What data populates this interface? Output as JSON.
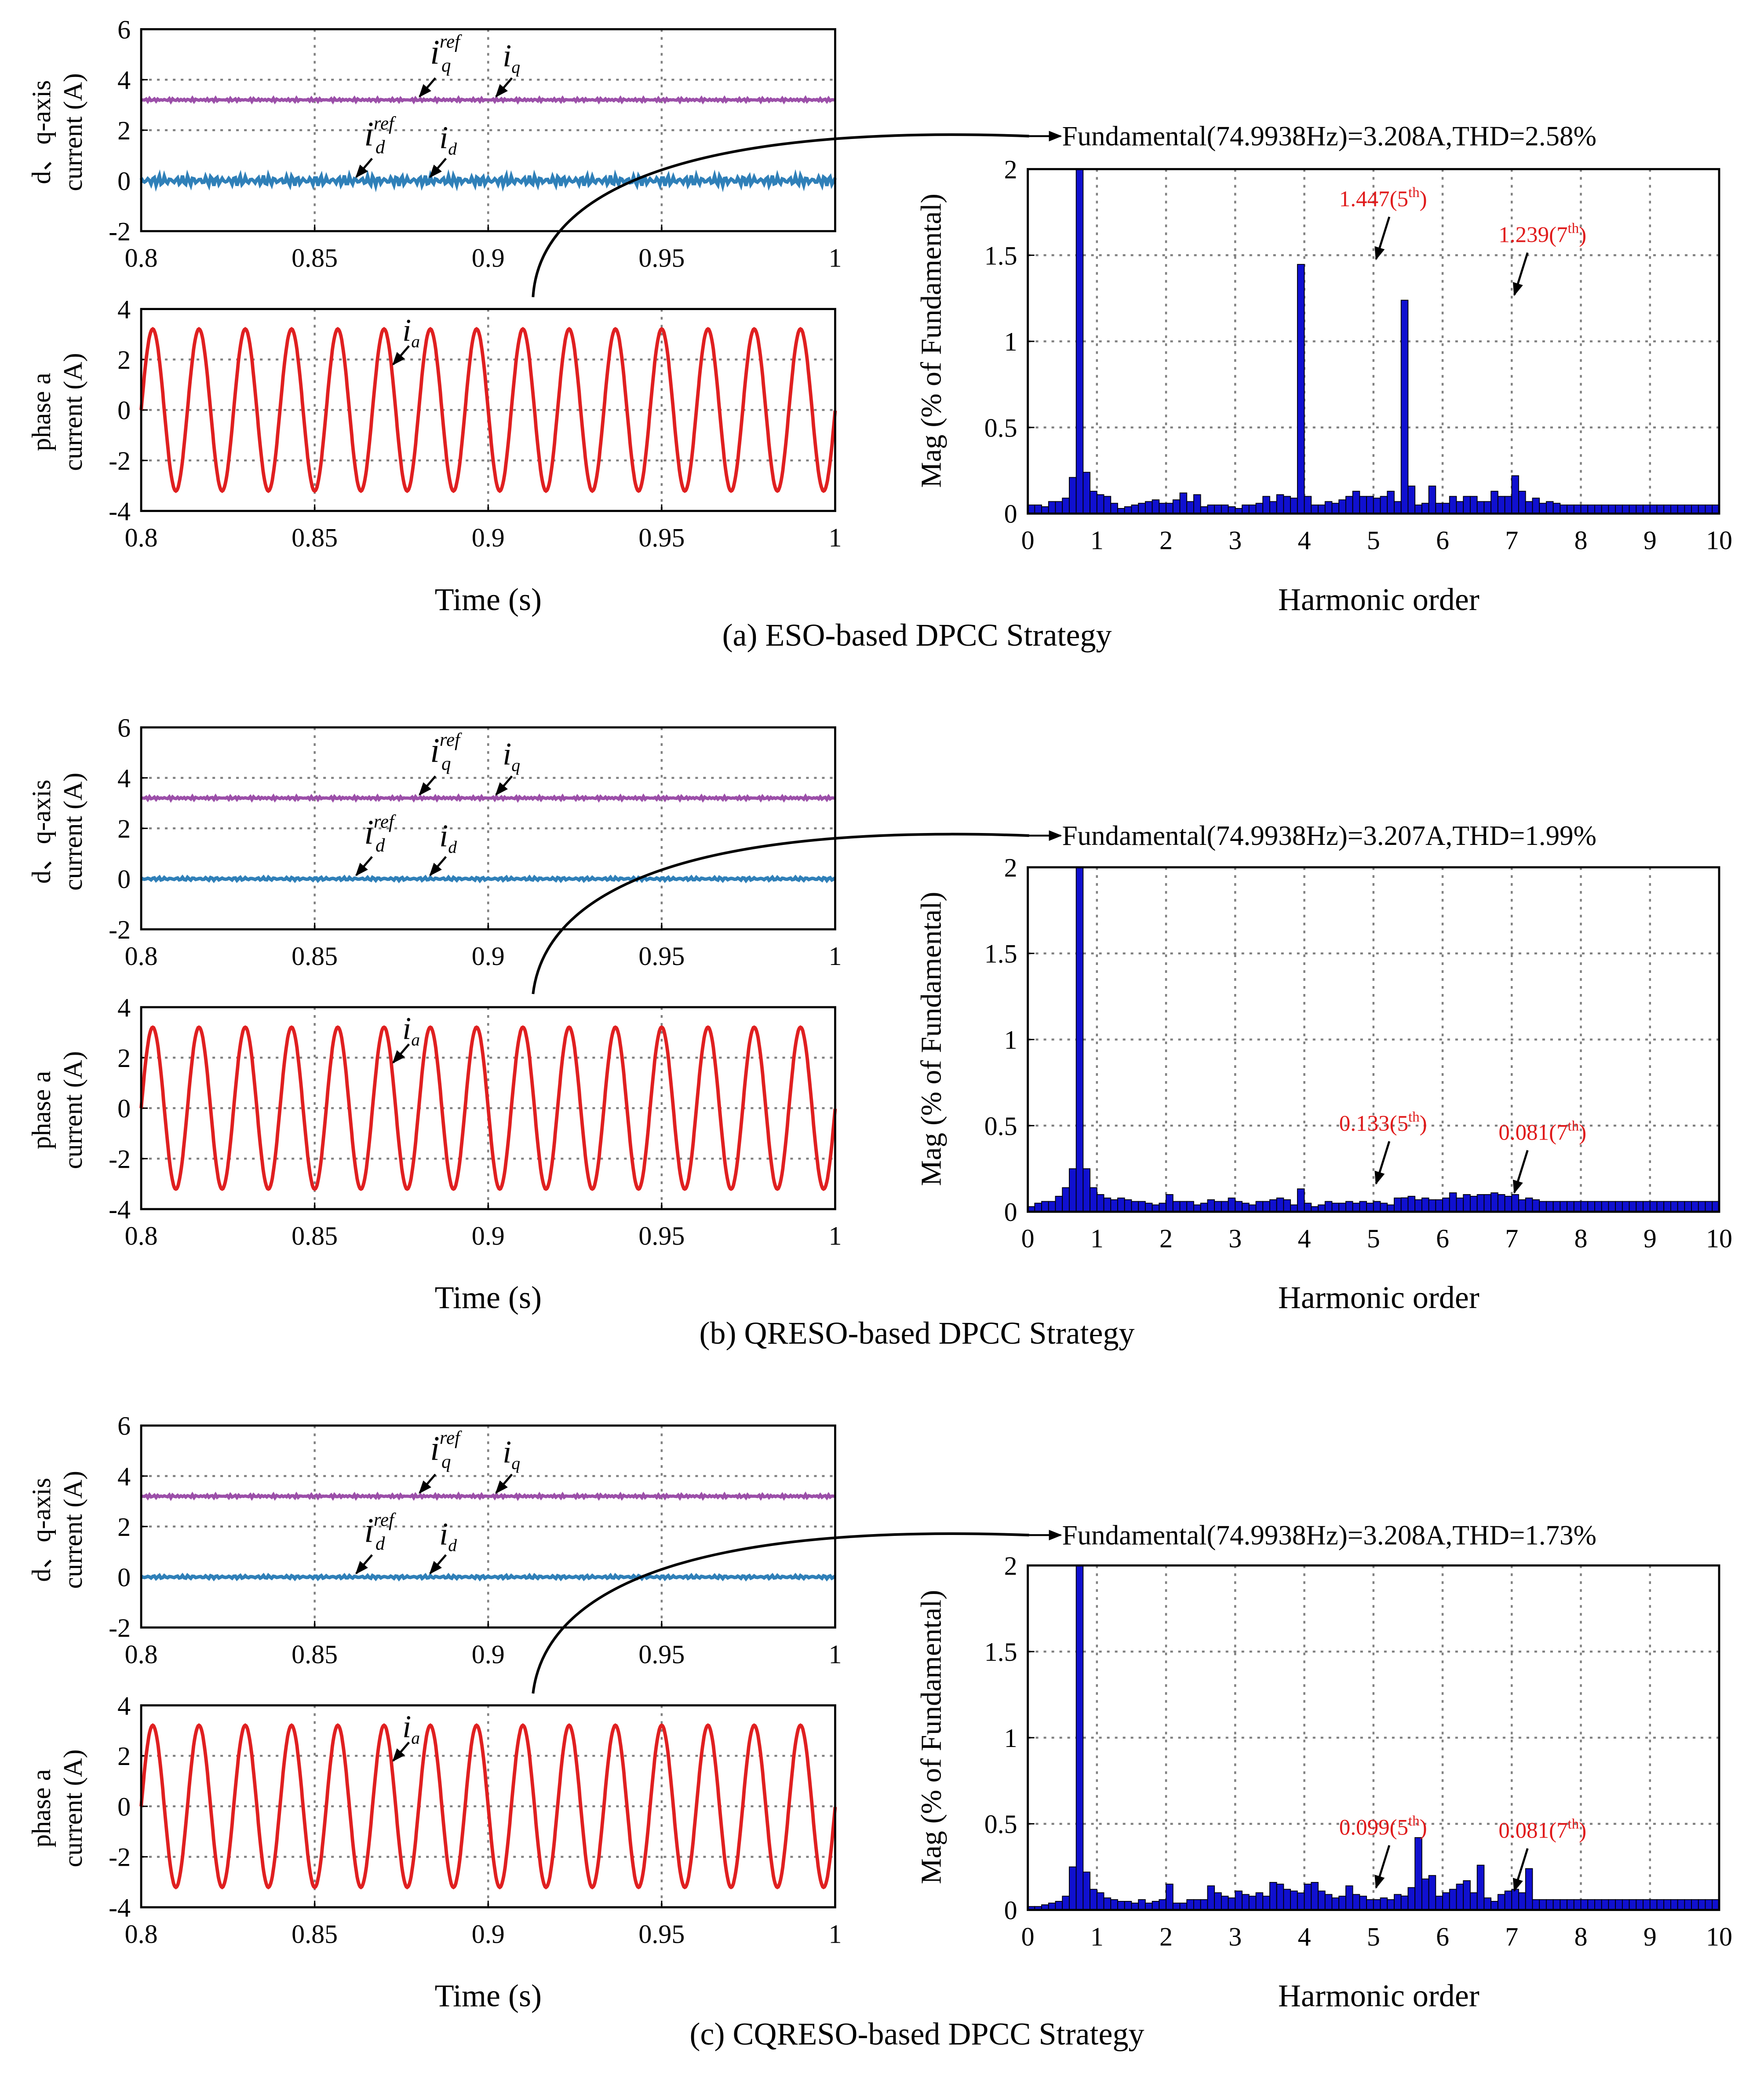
{
  "colors": {
    "iq": "#9b4fa8",
    "id": "#2f7fb8",
    "ia": "#e02020",
    "bar": "#1010d0",
    "bar_edge": "#000000",
    "annotation": "#e01a1a",
    "grid": "#808080"
  },
  "panels": [
    {
      "caption": "(a) ESO-based DPCC Strategy",
      "fundamental_text": "Fundamental(74.9938Hz)=3.208A,THD=2.58%",
      "dq_ylabel": [
        "d、q-axis",
        "current (A)"
      ],
      "phase_ylabel": [
        "phase a",
        "current (A)"
      ],
      "time_xlabel": "Time (s)",
      "harm_ylabel": "Mag (% of Fundamental)",
      "harm_xlabel": "Harmonic order",
      "annotations": [
        {
          "value": "1.447",
          "order": "5",
          "sup": "th",
          "label": "1.447(5th)",
          "x": 5,
          "y": 1.447
        },
        {
          "value": "1.239",
          "order": "7",
          "sup": "th",
          "label": "1.239(7th)",
          "x": 7,
          "y": 1.239
        }
      ],
      "signal_labels": {
        "iq_ref": "i",
        "iq_ref_sup": "ref",
        "iq_ref_sub": "q",
        "iq": "i",
        "iq_sub": "q",
        "id_ref": "i",
        "id_ref_sup": "ref",
        "id_ref_sub": "d",
        "id": "i",
        "id_sub": "d",
        "ia": "i",
        "ia_sub": "a"
      }
    },
    {
      "caption": "(b) QRESO-based DPCC Strategy",
      "fundamental_text": "Fundamental(74.9938Hz)=3.207A,THD=1.99%",
      "dq_ylabel": [
        "d、q-axis",
        "current (A)"
      ],
      "phase_ylabel": [
        "phase a",
        "current (A)"
      ],
      "time_xlabel": "Time (s)",
      "harm_ylabel": "Mag (% of Fundamental)",
      "harm_xlabel": "Harmonic order",
      "annotations": [
        {
          "value": "0.133",
          "order": "5",
          "sup": "th",
          "label": "0.133(5th)",
          "x": 5,
          "y": 0.133
        },
        {
          "value": "0.081",
          "order": "7",
          "sup": "th",
          "label": "0.081(7th)",
          "x": 7,
          "y": 0.081
        }
      ],
      "signal_labels": {
        "iq_ref": "i",
        "iq_ref_sup": "ref",
        "iq_ref_sub": "q",
        "iq": "i",
        "iq_sub": "q",
        "id_ref": "i",
        "id_ref_sup": "ref",
        "id_ref_sub": "d",
        "id": "i",
        "id_sub": "d",
        "ia": "i",
        "ia_sub": "a"
      }
    },
    {
      "caption": "(c) CQRESO-based DPCC Strategy",
      "fundamental_text": "Fundamental(74.9938Hz)=3.208A,THD=1.73%",
      "dq_ylabel": [
        "d、q-axis",
        "current (A)"
      ],
      "phase_ylabel": [
        "phase a",
        "current (A)"
      ],
      "time_xlabel": "Time (s)",
      "harm_ylabel": "Mag (% of Fundamental)",
      "harm_xlabel": "Harmonic order",
      "annotations": [
        {
          "value": "0.099",
          "order": "5",
          "sup": "th",
          "label": "0.099(5th)",
          "x": 5,
          "y": 0.099
        },
        {
          "value": "0.081",
          "order": "7",
          "sup": "th",
          "label": "0.081(7th)",
          "x": 7,
          "y": 0.081
        }
      ],
      "signal_labels": {
        "iq_ref": "i",
        "iq_ref_sup": "ref",
        "iq_ref_sub": "q",
        "iq": "i",
        "iq_sub": "q",
        "id_ref": "i",
        "id_ref_sup": "ref",
        "id_ref_sub": "d",
        "id": "i",
        "id_sub": "d",
        "ia": "i",
        "ia_sub": "a"
      }
    }
  ],
  "chart_data": [
    {
      "type": "line",
      "panel": "a",
      "xlabel": "",
      "ylabel": "d、q-axis current (A)",
      "xlim": [
        0.8,
        1
      ],
      "ylim": [
        -2,
        6
      ],
      "xticks": [
        0.8,
        0.85,
        0.9,
        0.95,
        1
      ],
      "yticks": [
        -2,
        0,
        2,
        4,
        6
      ],
      "series": [
        {
          "name": "iq",
          "level": 3.2,
          "ripple": 0.04
        },
        {
          "name": "id",
          "level": 0.0,
          "ripple": 0.13
        }
      ],
      "grid": true
    },
    {
      "type": "line",
      "panel": "a",
      "xlabel": "Time (s)",
      "ylabel": "phase a current (A)",
      "xlim": [
        0.8,
        1
      ],
      "ylim": [
        -4,
        4
      ],
      "xticks": [
        0.8,
        0.85,
        0.9,
        0.95,
        1
      ],
      "yticks": [
        -4,
        -2,
        0,
        2,
        4
      ],
      "series": [
        {
          "name": "ia",
          "amplitude": 3.208,
          "frequency_hz": 74.9938
        }
      ],
      "grid": true
    },
    {
      "type": "bar",
      "panel": "a",
      "xlabel": "Harmonic order",
      "ylabel": "Mag (% of Fundamental)",
      "xlim": [
        0,
        10
      ],
      "ylim": [
        0,
        2
      ],
      "xticks": [
        0,
        1,
        2,
        3,
        4,
        5,
        6,
        7,
        8,
        9,
        10
      ],
      "yticks": [
        0,
        0.5,
        1,
        1.5,
        2
      ],
      "bar_width": 0.1,
      "x": [
        0.1,
        0.2,
        0.3,
        0.4,
        0.5,
        0.6,
        0.7,
        0.8,
        0.9,
        1.0,
        1.1,
        1.2,
        1.3,
        1.4,
        1.5,
        1.6,
        1.7,
        1.8,
        1.9,
        2.0,
        2.1,
        2.2,
        2.3,
        2.4,
        2.5,
        2.6,
        2.7,
        2.8,
        2.9,
        3.0,
        3.1,
        3.2,
        3.3,
        3.4,
        3.5,
        3.6,
        3.7,
        3.8,
        3.9,
        4.0,
        4.1,
        4.2,
        4.3,
        4.4,
        4.5,
        4.6,
        4.7,
        4.8,
        4.9,
        5.0,
        5.1,
        5.2,
        5.3,
        5.4,
        5.5,
        5.6,
        5.7,
        5.8,
        5.9,
        6.0,
        6.1,
        6.2,
        6.3,
        6.4,
        6.5,
        6.6,
        6.7,
        6.8,
        6.9,
        7.0,
        7.1,
        7.2,
        7.3,
        7.4,
        7.5,
        7.6,
        7.7,
        7.8,
        7.9,
        8.0,
        8.1,
        8.2,
        8.3,
        8.4,
        8.5,
        8.6,
        8.7,
        8.8,
        8.9,
        9.0,
        9.1,
        9.2,
        9.3,
        9.4,
        9.5,
        9.6,
        9.7,
        9.8,
        9.9,
        10.0
      ],
      "values": [
        0.05,
        0.05,
        0.04,
        0.07,
        0.07,
        0.09,
        0.21,
        2.0,
        0.24,
        0.13,
        0.11,
        0.1,
        0.06,
        0.03,
        0.04,
        0.05,
        0.06,
        0.07,
        0.08,
        0.06,
        0.06,
        0.08,
        0.12,
        0.07,
        0.11,
        0.04,
        0.05,
        0.05,
        0.05,
        0.04,
        0.03,
        0.05,
        0.05,
        0.06,
        0.1,
        0.07,
        0.11,
        0.1,
        0.09,
        1.447,
        0.1,
        0.05,
        0.05,
        0.07,
        0.06,
        0.08,
        0.1,
        0.13,
        0.1,
        0.1,
        0.09,
        0.1,
        0.13,
        0.07,
        1.239,
        0.16,
        0.05,
        0.06,
        0.16,
        0.06,
        0.06,
        0.1,
        0.07,
        0.1,
        0.1,
        0.07,
        0.07,
        0.13,
        0.1,
        0.1,
        0.22,
        0.13,
        0.07,
        0.09,
        0.06,
        0.07,
        0.06,
        0.05,
        0.05,
        0.05,
        0.05,
        0.05,
        0.05,
        0.05,
        0.05,
        0.05,
        0.05,
        0.05,
        0.05,
        0.05,
        0.05,
        0.05,
        0.05,
        0.05,
        0.05,
        0.05,
        0.05,
        0.05,
        0.05,
        0.05
      ],
      "annotations": [
        "1.447(5th)",
        "1.239(7th)"
      ],
      "grid": true
    },
    {
      "type": "line",
      "panel": "b",
      "xlabel": "",
      "ylabel": "d、q-axis current (A)",
      "xlim": [
        0.8,
        1
      ],
      "ylim": [
        -2,
        6
      ],
      "xticks": [
        0.8,
        0.85,
        0.9,
        0.95,
        1
      ],
      "yticks": [
        -2,
        0,
        2,
        4,
        6
      ],
      "series": [
        {
          "name": "iq",
          "level": 3.2,
          "ripple": 0.04
        },
        {
          "name": "id",
          "level": 0.0,
          "ripple": 0.04
        }
      ],
      "grid": true
    },
    {
      "type": "line",
      "panel": "b",
      "xlabel": "Time (s)",
      "ylabel": "phase a current (A)",
      "xlim": [
        0.8,
        1
      ],
      "ylim": [
        -4,
        4
      ],
      "xticks": [
        0.8,
        0.85,
        0.9,
        0.95,
        1
      ],
      "yticks": [
        -4,
        -2,
        0,
        2,
        4
      ],
      "series": [
        {
          "name": "ia",
          "amplitude": 3.207,
          "frequency_hz": 74.9938
        }
      ],
      "grid": true
    },
    {
      "type": "bar",
      "panel": "b",
      "xlabel": "Harmonic order",
      "ylabel": "Mag (% of Fundamental)",
      "xlim": [
        0,
        10
      ],
      "ylim": [
        0,
        2
      ],
      "xticks": [
        0,
        1,
        2,
        3,
        4,
        5,
        6,
        7,
        8,
        9,
        10
      ],
      "yticks": [
        0,
        0.5,
        1,
        1.5,
        2
      ],
      "bar_width": 0.1,
      "x": [
        0.1,
        0.2,
        0.3,
        0.4,
        0.5,
        0.6,
        0.7,
        0.8,
        0.9,
        1.0,
        1.1,
        1.2,
        1.3,
        1.4,
        1.5,
        1.6,
        1.7,
        1.8,
        1.9,
        2.0,
        2.1,
        2.2,
        2.3,
        2.4,
        2.5,
        2.6,
        2.7,
        2.8,
        2.9,
        3.0,
        3.1,
        3.2,
        3.3,
        3.4,
        3.5,
        3.6,
        3.7,
        3.8,
        3.9,
        4.0,
        4.1,
        4.2,
        4.3,
        4.4,
        4.5,
        4.6,
        4.7,
        4.8,
        4.9,
        5.0,
        5.1,
        5.2,
        5.3,
        5.4,
        5.5,
        5.6,
        5.7,
        5.8,
        5.9,
        6.0,
        6.1,
        6.2,
        6.3,
        6.4,
        6.5,
        6.6,
        6.7,
        6.8,
        6.9,
        7.0,
        7.1,
        7.2,
        7.3,
        7.4,
        7.5,
        7.6,
        7.7,
        7.8,
        7.9,
        8.0,
        8.1,
        8.2,
        8.3,
        8.4,
        8.5,
        8.6,
        8.7,
        8.8,
        8.9,
        9.0,
        9.1,
        9.2,
        9.3,
        9.4,
        9.5,
        9.6,
        9.7,
        9.8,
        9.9,
        10.0
      ],
      "values": [
        0.03,
        0.05,
        0.06,
        0.06,
        0.09,
        0.14,
        0.25,
        2.0,
        0.25,
        0.14,
        0.1,
        0.08,
        0.07,
        0.08,
        0.07,
        0.06,
        0.06,
        0.05,
        0.04,
        0.05,
        0.1,
        0.06,
        0.06,
        0.06,
        0.04,
        0.05,
        0.07,
        0.06,
        0.06,
        0.08,
        0.06,
        0.05,
        0.04,
        0.06,
        0.06,
        0.07,
        0.08,
        0.07,
        0.04,
        0.133,
        0.05,
        0.03,
        0.04,
        0.06,
        0.05,
        0.05,
        0.06,
        0.05,
        0.06,
        0.05,
        0.06,
        0.05,
        0.04,
        0.08,
        0.081,
        0.09,
        0.07,
        0.08,
        0.07,
        0.07,
        0.08,
        0.11,
        0.08,
        0.1,
        0.09,
        0.1,
        0.1,
        0.11,
        0.1,
        0.09,
        0.1,
        0.07,
        0.08,
        0.07,
        0.06,
        0.06,
        0.06,
        0.06,
        0.06,
        0.06,
        0.06,
        0.06,
        0.06,
        0.06,
        0.06,
        0.06,
        0.06,
        0.06,
        0.06,
        0.06,
        0.06,
        0.06,
        0.06,
        0.06,
        0.06,
        0.06,
        0.06,
        0.06,
        0.06,
        0.06
      ],
      "annotations": [
        "0.133(5th)",
        "0.081(7th)"
      ],
      "grid": true
    },
    {
      "type": "line",
      "panel": "c",
      "xlabel": "",
      "ylabel": "d、q-axis current (A)",
      "xlim": [
        0.8,
        1
      ],
      "ylim": [
        -2,
        6
      ],
      "xticks": [
        0.8,
        0.85,
        0.9,
        0.95,
        1
      ],
      "yticks": [
        -2,
        0,
        2,
        4,
        6
      ],
      "series": [
        {
          "name": "iq",
          "level": 3.2,
          "ripple": 0.04
        },
        {
          "name": "id",
          "level": 0.0,
          "ripple": 0.04
        }
      ],
      "grid": true
    },
    {
      "type": "line",
      "panel": "c",
      "xlabel": "Time (s)",
      "ylabel": "phase a current (A)",
      "xlim": [
        0.8,
        1
      ],
      "ylim": [
        -4,
        4
      ],
      "xticks": [
        0.8,
        0.85,
        0.9,
        0.95,
        1
      ],
      "yticks": [
        -4,
        -2,
        0,
        2,
        4
      ],
      "series": [
        {
          "name": "ia",
          "amplitude": 3.208,
          "frequency_hz": 74.9938
        }
      ],
      "grid": true
    },
    {
      "type": "bar",
      "panel": "c",
      "xlabel": "Harmonic order",
      "ylabel": "Mag (% of Fundamental)",
      "xlim": [
        0,
        10
      ],
      "ylim": [
        0,
        2
      ],
      "xticks": [
        0,
        1,
        2,
        3,
        4,
        5,
        6,
        7,
        8,
        9,
        10
      ],
      "yticks": [
        0,
        0.5,
        1,
        1.5,
        2
      ],
      "bar_width": 0.1,
      "x": [
        0.1,
        0.2,
        0.3,
        0.4,
        0.5,
        0.6,
        0.7,
        0.8,
        0.9,
        1.0,
        1.1,
        1.2,
        1.3,
        1.4,
        1.5,
        1.6,
        1.7,
        1.8,
        1.9,
        2.0,
        2.1,
        2.2,
        2.3,
        2.4,
        2.5,
        2.6,
        2.7,
        2.8,
        2.9,
        3.0,
        3.1,
        3.2,
        3.3,
        3.4,
        3.5,
        3.6,
        3.7,
        3.8,
        3.9,
        4.0,
        4.1,
        4.2,
        4.3,
        4.4,
        4.5,
        4.6,
        4.7,
        4.8,
        4.9,
        5.0,
        5.1,
        5.2,
        5.3,
        5.4,
        5.5,
        5.6,
        5.7,
        5.8,
        5.9,
        6.0,
        6.1,
        6.2,
        6.3,
        6.4,
        6.5,
        6.6,
        6.7,
        6.8,
        6.9,
        7.0,
        7.1,
        7.2,
        7.3,
        7.4,
        7.5,
        7.6,
        7.7,
        7.8,
        7.9,
        8.0,
        8.1,
        8.2,
        8.3,
        8.4,
        8.5,
        8.6,
        8.7,
        8.8,
        8.9,
        9.0,
        9.1,
        9.2,
        9.3,
        9.4,
        9.5,
        9.6,
        9.7,
        9.8,
        9.9,
        10.0
      ],
      "values": [
        0.02,
        0.02,
        0.03,
        0.04,
        0.05,
        0.08,
        0.25,
        2.0,
        0.22,
        0.12,
        0.1,
        0.07,
        0.06,
        0.05,
        0.05,
        0.04,
        0.06,
        0.04,
        0.05,
        0.06,
        0.15,
        0.04,
        0.04,
        0.06,
        0.06,
        0.06,
        0.14,
        0.1,
        0.08,
        0.07,
        0.11,
        0.09,
        0.08,
        0.1,
        0.08,
        0.16,
        0.15,
        0.12,
        0.11,
        0.099,
        0.15,
        0.16,
        0.11,
        0.09,
        0.07,
        0.08,
        0.14,
        0.09,
        0.08,
        0.06,
        0.06,
        0.07,
        0.06,
        0.09,
        0.081,
        0.13,
        0.42,
        0.18,
        0.2,
        0.08,
        0.1,
        0.12,
        0.15,
        0.17,
        0.1,
        0.26,
        0.07,
        0.05,
        0.09,
        0.11,
        0.12,
        0.1,
        0.24,
        0.06,
        0.06,
        0.06,
        0.06,
        0.06,
        0.06,
        0.06,
        0.06,
        0.06,
        0.06,
        0.06,
        0.06,
        0.06,
        0.06,
        0.06,
        0.06,
        0.06,
        0.06,
        0.06,
        0.06,
        0.06,
        0.06,
        0.06,
        0.06,
        0.06,
        0.06,
        0.06
      ],
      "annotations": [
        "0.099(5th)",
        "0.081(7th)"
      ],
      "grid": true
    }
  ]
}
